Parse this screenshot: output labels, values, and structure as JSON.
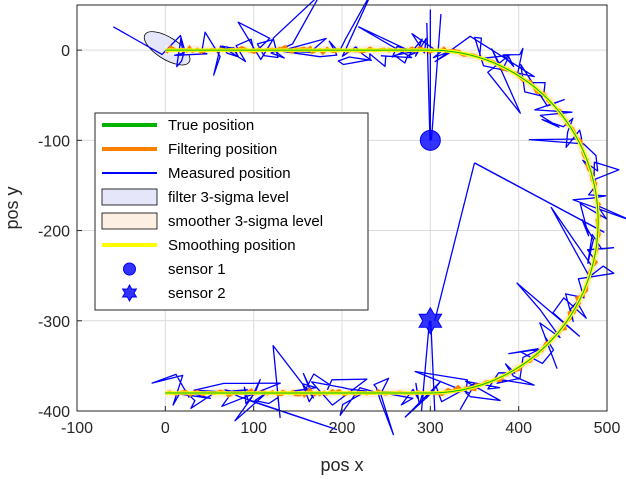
{
  "chart_data": {
    "type": "line",
    "title": "",
    "xlabel": "pos x",
    "ylabel": "pos y",
    "xlim": [
      -100,
      500
    ],
    "ylim": [
      -400,
      50
    ],
    "x_ticks": [
      -100,
      0,
      100,
      200,
      300,
      400,
      500
    ],
    "y_ticks": [
      0,
      -100,
      -200,
      -300,
      -400
    ],
    "x_tick_labels": [
      "-100",
      "0",
      "100",
      "200",
      "300",
      "400",
      "500"
    ],
    "y_tick_labels": [
      "0",
      "-100",
      "-200",
      "-300",
      "-400"
    ],
    "grid": true,
    "legend_position": "middle-left",
    "trajectory": {
      "top_y": 0,
      "bottom_y": -380,
      "straight_start_x": 0,
      "straight_end_x": 300,
      "turn_center": [
        300,
        -190
      ],
      "turn_radius": 190
    },
    "series": [
      {
        "name": "True position",
        "style": "line",
        "color": "#00b300"
      },
      {
        "name": "Filtering position",
        "style": "line",
        "color": "#ff8000"
      },
      {
        "name": "Measured position",
        "style": "line",
        "color": "#0000ff"
      },
      {
        "name": "filter 3-sigma level",
        "style": "patch",
        "color": "#e6e6fa"
      },
      {
        "name": "smoother 3-sigma level",
        "style": "patch",
        "color": "#fdf0e2"
      },
      {
        "name": "Smoothing position",
        "style": "line",
        "color": "#ffff00"
      },
      {
        "name": "sensor 1",
        "style": "marker-circle",
        "color": "#0000ff",
        "x": [
          300
        ],
        "y": [
          -100
        ]
      },
      {
        "name": "sensor 2",
        "style": "marker-hexagram",
        "color": "#0000ff",
        "x": [
          300
        ],
        "y": [
          -300
        ]
      }
    ],
    "colors": {
      "true": "#00b300",
      "filtering": "#ff8000",
      "measured": "#0000ff",
      "filter_sigma_fill": "#e6e6fa",
      "smoother_sigma_fill": "#fdf0e2",
      "smoothing": "#ffff00",
      "sensor": "#0000ff"
    }
  }
}
